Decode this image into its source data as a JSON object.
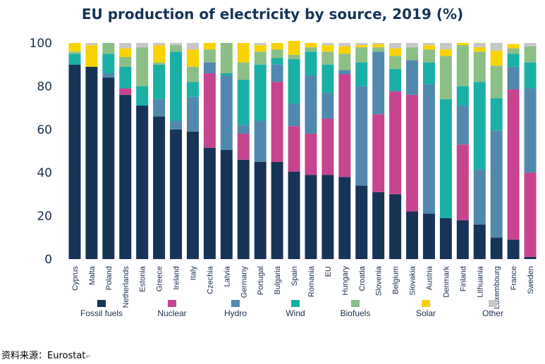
{
  "chart_data": {
    "type": "bar",
    "stacked": true,
    "title": "EU production of electricity by source, 2019 (%)",
    "ylim": [
      0,
      100
    ],
    "yticks": [
      0,
      20,
      40,
      60,
      80,
      100
    ],
    "categories": [
      "Cyprus",
      "Malta",
      "Poland",
      "Netherlands",
      "Estonia",
      "Greece",
      "Ireland",
      "Italy",
      "Czechia",
      "Latvia",
      "Germany",
      "Portugal",
      "Bulgaria",
      "Spain",
      "Romania",
      "EU",
      "Hungary",
      "Croatia",
      "Slovenia",
      "Belgium",
      "Slovakia",
      "Austria",
      "Denmark",
      "Finland",
      "Lithuania",
      "Luxembourg",
      "France",
      "Sweden"
    ],
    "series": [
      {
        "name": "Fossil fuels",
        "color": "#173457",
        "values": [
          90,
          89,
          84,
          76,
          71,
          66,
          60,
          59,
          51.5,
          50.5,
          46,
          45,
          45,
          40.5,
          39,
          39,
          38,
          34,
          31,
          30,
          22,
          21,
          19,
          18,
          16,
          10,
          9,
          1
        ]
      },
      {
        "name": "Nuclear",
        "color": "#c7448f",
        "values": [
          0,
          0,
          0,
          3,
          0,
          0,
          0,
          0,
          34.5,
          0,
          12,
          0,
          37,
          21,
          19,
          26,
          47.5,
          0,
          36,
          47.5,
          54,
          0,
          0,
          35,
          0,
          0,
          69.5,
          39
        ]
      },
      {
        "name": "Hydro",
        "color": "#5189ae",
        "values": [
          0,
          0,
          2,
          0,
          0,
          8,
          4,
          16,
          5,
          34.5,
          4,
          19,
          8,
          10.5,
          27,
          12,
          2,
          46,
          29,
          0.5,
          16,
          60,
          0,
          18,
          25.5,
          49.5,
          10.5,
          39
        ]
      },
      {
        "name": "Wind",
        "color": "#1ab0a6",
        "values": [
          5,
          0,
          9,
          10,
          9,
          16,
          32,
          7,
          0,
          1,
          21,
          26,
          3,
          20.5,
          11,
          13,
          0,
          11,
          0,
          10,
          0,
          10,
          55,
          9,
          40.5,
          15,
          6,
          12
        ]
      },
      {
        "name": "Biofuels",
        "color": "#8cbf86",
        "values": [
          1,
          0,
          5,
          4.5,
          18,
          1,
          3,
          7,
          6,
          14,
          8,
          6,
          4,
          2,
          2,
          6,
          7.5,
          7,
          2,
          6,
          6,
          6,
          20,
          19,
          14,
          15,
          2.5,
          7.5
        ]
      },
      {
        "name": "Solar",
        "color": "#f8d300",
        "values": [
          4,
          10,
          0,
          4,
          0,
          8,
          0,
          8,
          3,
          0,
          9,
          3,
          3,
          6.5,
          2,
          3,
          3.5,
          1,
          1.5,
          3.5,
          0,
          2,
          3,
          1,
          2,
          7,
          2,
          0
        ]
      },
      {
        "name": "Other",
        "color": "#c7c7c7",
        "values": [
          0,
          1,
          0,
          2.5,
          2,
          1,
          1,
          3,
          0,
          0,
          0,
          1,
          0,
          0,
          0,
          1,
          1.5,
          1,
          0.5,
          2.5,
          2,
          1,
          3,
          0,
          2,
          3.5,
          0,
          1.5
        ]
      }
    ],
    "legend_position": "bottom",
    "grid": false
  },
  "source": "资料来源：Eurostat",
  "return_mark": "↵"
}
